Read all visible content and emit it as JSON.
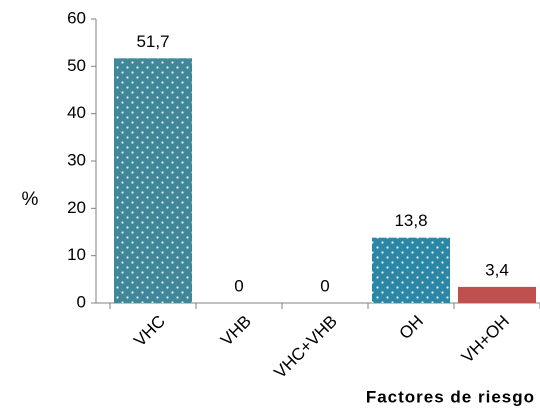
{
  "chart_data": {
    "type": "bar",
    "categories": [
      "VHC",
      "VHB",
      "VHC+VHB",
      "OH",
      "VH+OH"
    ],
    "values": [
      51.7,
      0,
      0,
      13.8,
      3.4
    ],
    "value_labels": [
      "51,7",
      "0",
      "0",
      "13,8",
      "3,4"
    ],
    "colors": [
      "#3f8799",
      "#3f8799",
      "#3f8799",
      "#2b87a5",
      "#c0504d"
    ],
    "y_label": "%",
    "x_label": "Factores de riesgo",
    "ylim": [
      0,
      60
    ],
    "yticks": [
      0,
      10,
      20,
      30,
      40,
      50,
      60
    ]
  }
}
